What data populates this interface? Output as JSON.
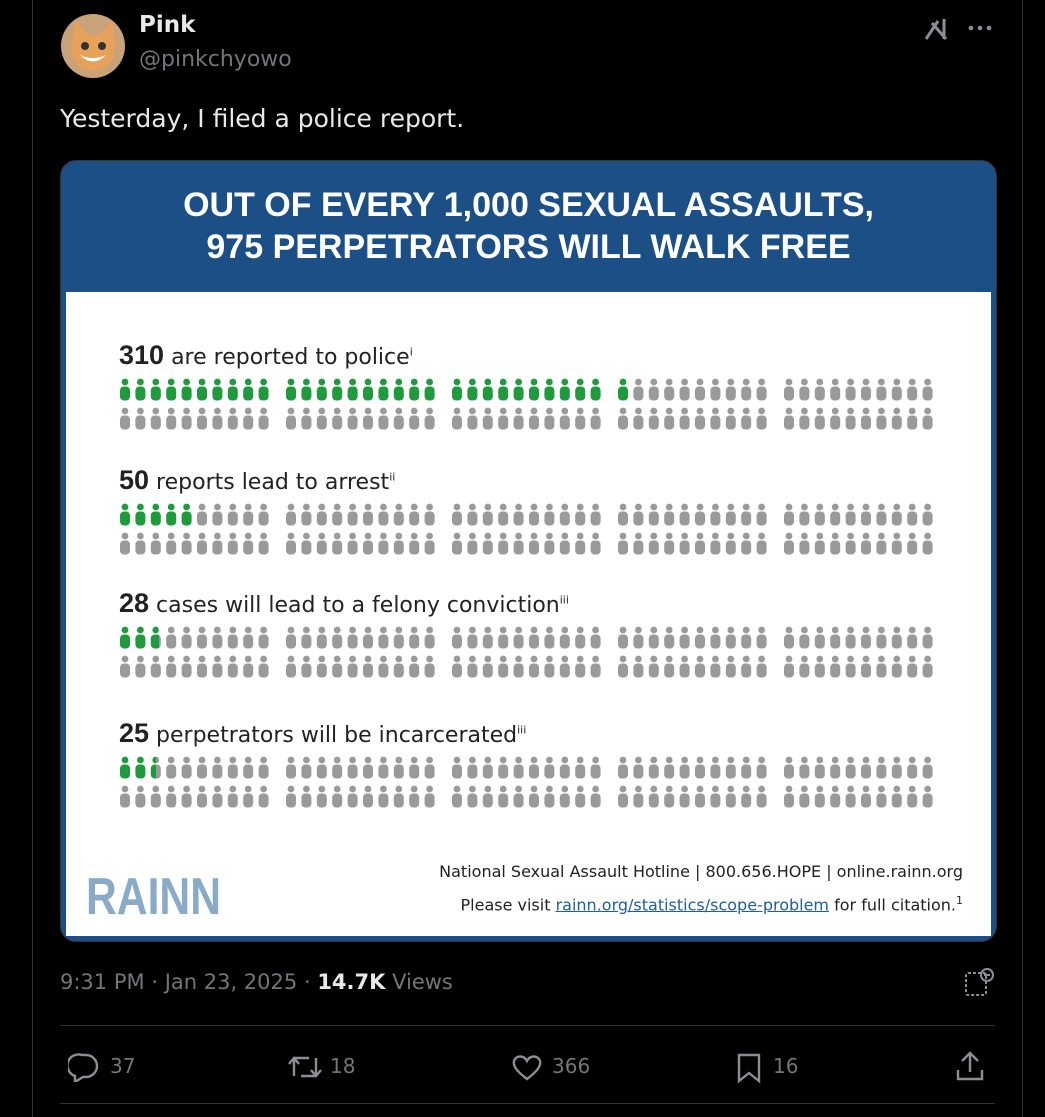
{
  "author": {
    "name": "Pink",
    "handle": "@pinkchyowo"
  },
  "post": {
    "text": "Yesterday, I filed a police report."
  },
  "infographic": {
    "title_lines": [
      "OUT OF EVERY 1,000 SEXUAL ASSAULTS,",
      "975 PERPETRATORS WILL WALK FREE"
    ],
    "stats": [
      {
        "number": 310,
        "text": "are reported to police",
        "note": "i"
      },
      {
        "number": 50,
        "text": "reports lead to arrest",
        "note": "ii"
      },
      {
        "number": 28,
        "text": "cases will lead to a felony conviction",
        "note": "iii"
      },
      {
        "number": 25,
        "text": "perpetrators will be incarcerated",
        "note": "iii"
      }
    ],
    "logo": "RAINN",
    "footer_line1": "National Sexual Assault Hotline | 800.656.HOPE | online.rainn.org",
    "footer_line2": {
      "before": "Please visit",
      "link": "rainn.org/statistics/scope-problem",
      "after": "for full citation.",
      "note": "1"
    }
  },
  "meta": {
    "time": "9:31 PM",
    "separator": "·",
    "date": "Jan 23, 2025",
    "views": "14.7K",
    "views_label": "Views"
  },
  "actions": {
    "replies": 37,
    "reposts": 18,
    "likes": 366,
    "bookmarks": 16
  }
}
